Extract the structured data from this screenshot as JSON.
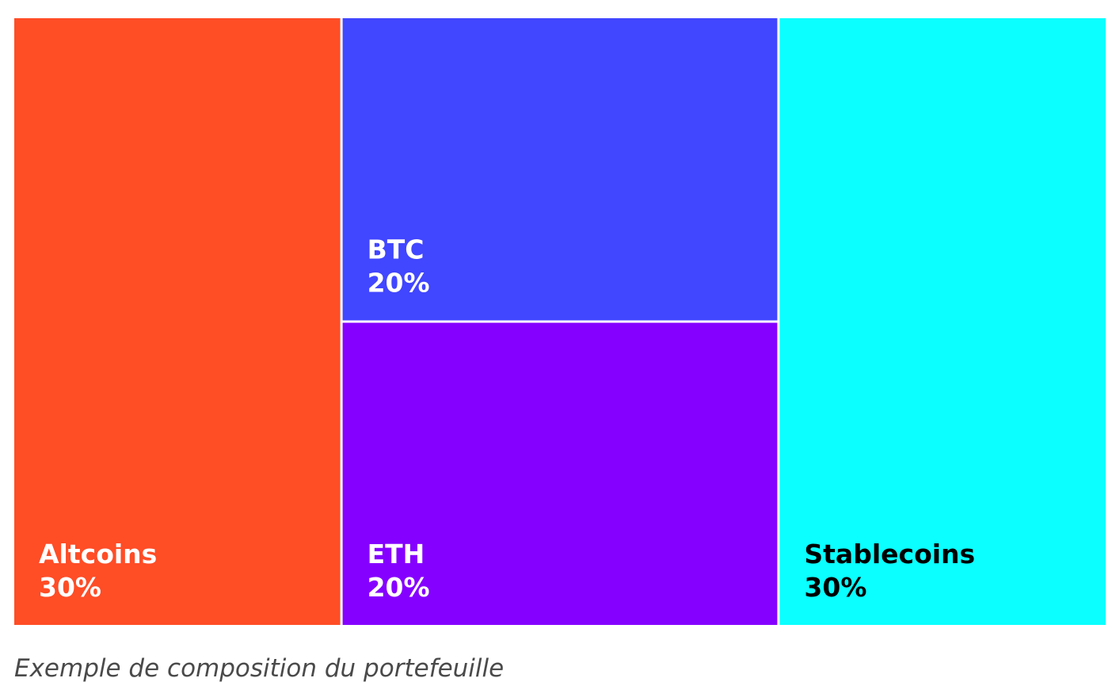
{
  "chart_data": {
    "type": "treemap",
    "title": "",
    "caption": "Exemple de composition du portefeuille",
    "items": [
      {
        "name": "Altcoins",
        "value": 30,
        "label": "30%",
        "color": "#FF4D26",
        "text_color": "#FFFFFF"
      },
      {
        "name": "BTC",
        "value": 20,
        "label": "20%",
        "color": "#4146FF",
        "text_color": "#FFFFFF"
      },
      {
        "name": "ETH",
        "value": 20,
        "label": "20%",
        "color": "#8500FF",
        "text_color": "#FFFFFF"
      },
      {
        "name": "Stablecoins",
        "value": 30,
        "label": "30%",
        "color": "#0BFFFF",
        "text_color": "#000000"
      }
    ]
  }
}
